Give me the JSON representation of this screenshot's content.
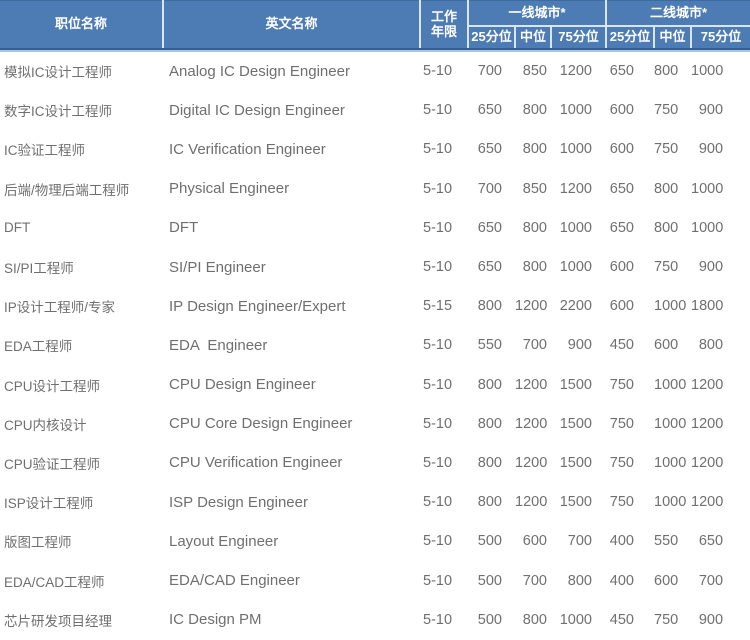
{
  "table": {
    "headers": {
      "position": "职位名称",
      "english": "英文名称",
      "years_line1": "工作",
      "years_line2": "年限",
      "tier1": "一线城市*",
      "tier2": "二线城市*",
      "p25": "25分位",
      "median": "中位",
      "p75": "75分位"
    },
    "rows": [
      {
        "position": "模拟IC设计工程师",
        "english": "Analog IC Design Engineer",
        "years": "5-10",
        "t1_p25": "700",
        "t1_med": "850",
        "t1_p75": "1200",
        "t2_p25": "650",
        "t2_med": "800",
        "t2_p75": "1000"
      },
      {
        "position": "数字IC设计工程师",
        "english": "Digital IC Design Engineer",
        "years": "5-10",
        "t1_p25": "650",
        "t1_med": "800",
        "t1_p75": "1000",
        "t2_p25": "600",
        "t2_med": "750",
        "t2_p75": "900"
      },
      {
        "position": "IC验证工程师",
        "english": "IC Verification Engineer",
        "years": "5-10",
        "t1_p25": "650",
        "t1_med": "800",
        "t1_p75": "1000",
        "t2_p25": "600",
        "t2_med": "750",
        "t2_p75": "900"
      },
      {
        "position": "后端/物理后端工程师",
        "english": "Physical Engineer",
        "years": "5-10",
        "t1_p25": "700",
        "t1_med": "850",
        "t1_p75": "1200",
        "t2_p25": "650",
        "t2_med": "800",
        "t2_p75": "1000"
      },
      {
        "position": "DFT",
        "english": "DFT",
        "years": "5-10",
        "t1_p25": "650",
        "t1_med": "800",
        "t1_p75": "1000",
        "t2_p25": "650",
        "t2_med": "800",
        "t2_p75": "1000"
      },
      {
        "position": "SI/PI工程师",
        "english": "SI/PI Engineer",
        "years": "5-10",
        "t1_p25": "650",
        "t1_med": "800",
        "t1_p75": "1000",
        "t2_p25": "600",
        "t2_med": "750",
        "t2_p75": "900"
      },
      {
        "position": "IP设计工程师/专家",
        "english": "IP Design Engineer/Expert",
        "years": "5-15",
        "t1_p25": "800",
        "t1_med": "1200",
        "t1_p75": "2200",
        "t2_p25": "600",
        "t2_med": "1000",
        "t2_p75": "1800"
      },
      {
        "position": "EDA工程师",
        "english": "EDA  Engineer",
        "years": "5-10",
        "t1_p25": "550",
        "t1_med": "700",
        "t1_p75": "900",
        "t2_p25": "450",
        "t2_med": "600",
        "t2_p75": "800"
      },
      {
        "position": "CPU设计工程师",
        "english": "CPU Design Engineer",
        "years": "5-10",
        "t1_p25": "800",
        "t1_med": "1200",
        "t1_p75": "1500",
        "t2_p25": "750",
        "t2_med": "1000",
        "t2_p75": "1200"
      },
      {
        "position": "CPU内核设计",
        "english": "CPU Core Design Engineer",
        "years": "5-10",
        "t1_p25": "800",
        "t1_med": "1200",
        "t1_p75": "1500",
        "t2_p25": "750",
        "t2_med": "1000",
        "t2_p75": "1200"
      },
      {
        "position": "CPU验证工程师",
        "english": "CPU Verification Engineer",
        "years": "5-10",
        "t1_p25": "800",
        "t1_med": "1200",
        "t1_p75": "1500",
        "t2_p25": "750",
        "t2_med": "1000",
        "t2_p75": "1200"
      },
      {
        "position": "ISP设计工程师",
        "english": "ISP Design Engineer",
        "years": "5-10",
        "t1_p25": "800",
        "t1_med": "1200",
        "t1_p75": "1500",
        "t2_p25": "750",
        "t2_med": "1000",
        "t2_p75": "1200"
      },
      {
        "position": "版图工程师",
        "english": "Layout Engineer",
        "years": "5-10",
        "t1_p25": "500",
        "t1_med": "600",
        "t1_p75": "700",
        "t2_p25": "400",
        "t2_med": "550",
        "t2_p75": "650"
      },
      {
        "position": "EDA/CAD工程师",
        "english": "EDA/CAD Engineer",
        "years": "5-10",
        "t1_p25": "500",
        "t1_med": "700",
        "t1_p75": "800",
        "t2_p25": "400",
        "t2_med": "600",
        "t2_p75": "700"
      },
      {
        "position": "芯片研发项目经理",
        "english": "IC Design PM",
        "years": "5-10",
        "t1_p25": "500",
        "t1_med": "800",
        "t1_p75": "1000",
        "t2_p25": "450",
        "t2_med": "750",
        "t2_p75": "900"
      }
    ]
  },
  "colors": {
    "header_bg": "#4D7CB4",
    "header_divider_light": "#D9E5F2",
    "header_rule_dark": "#365F91",
    "header_rule_light": "#A9C4E4",
    "body_text": "#6F6F6F"
  }
}
